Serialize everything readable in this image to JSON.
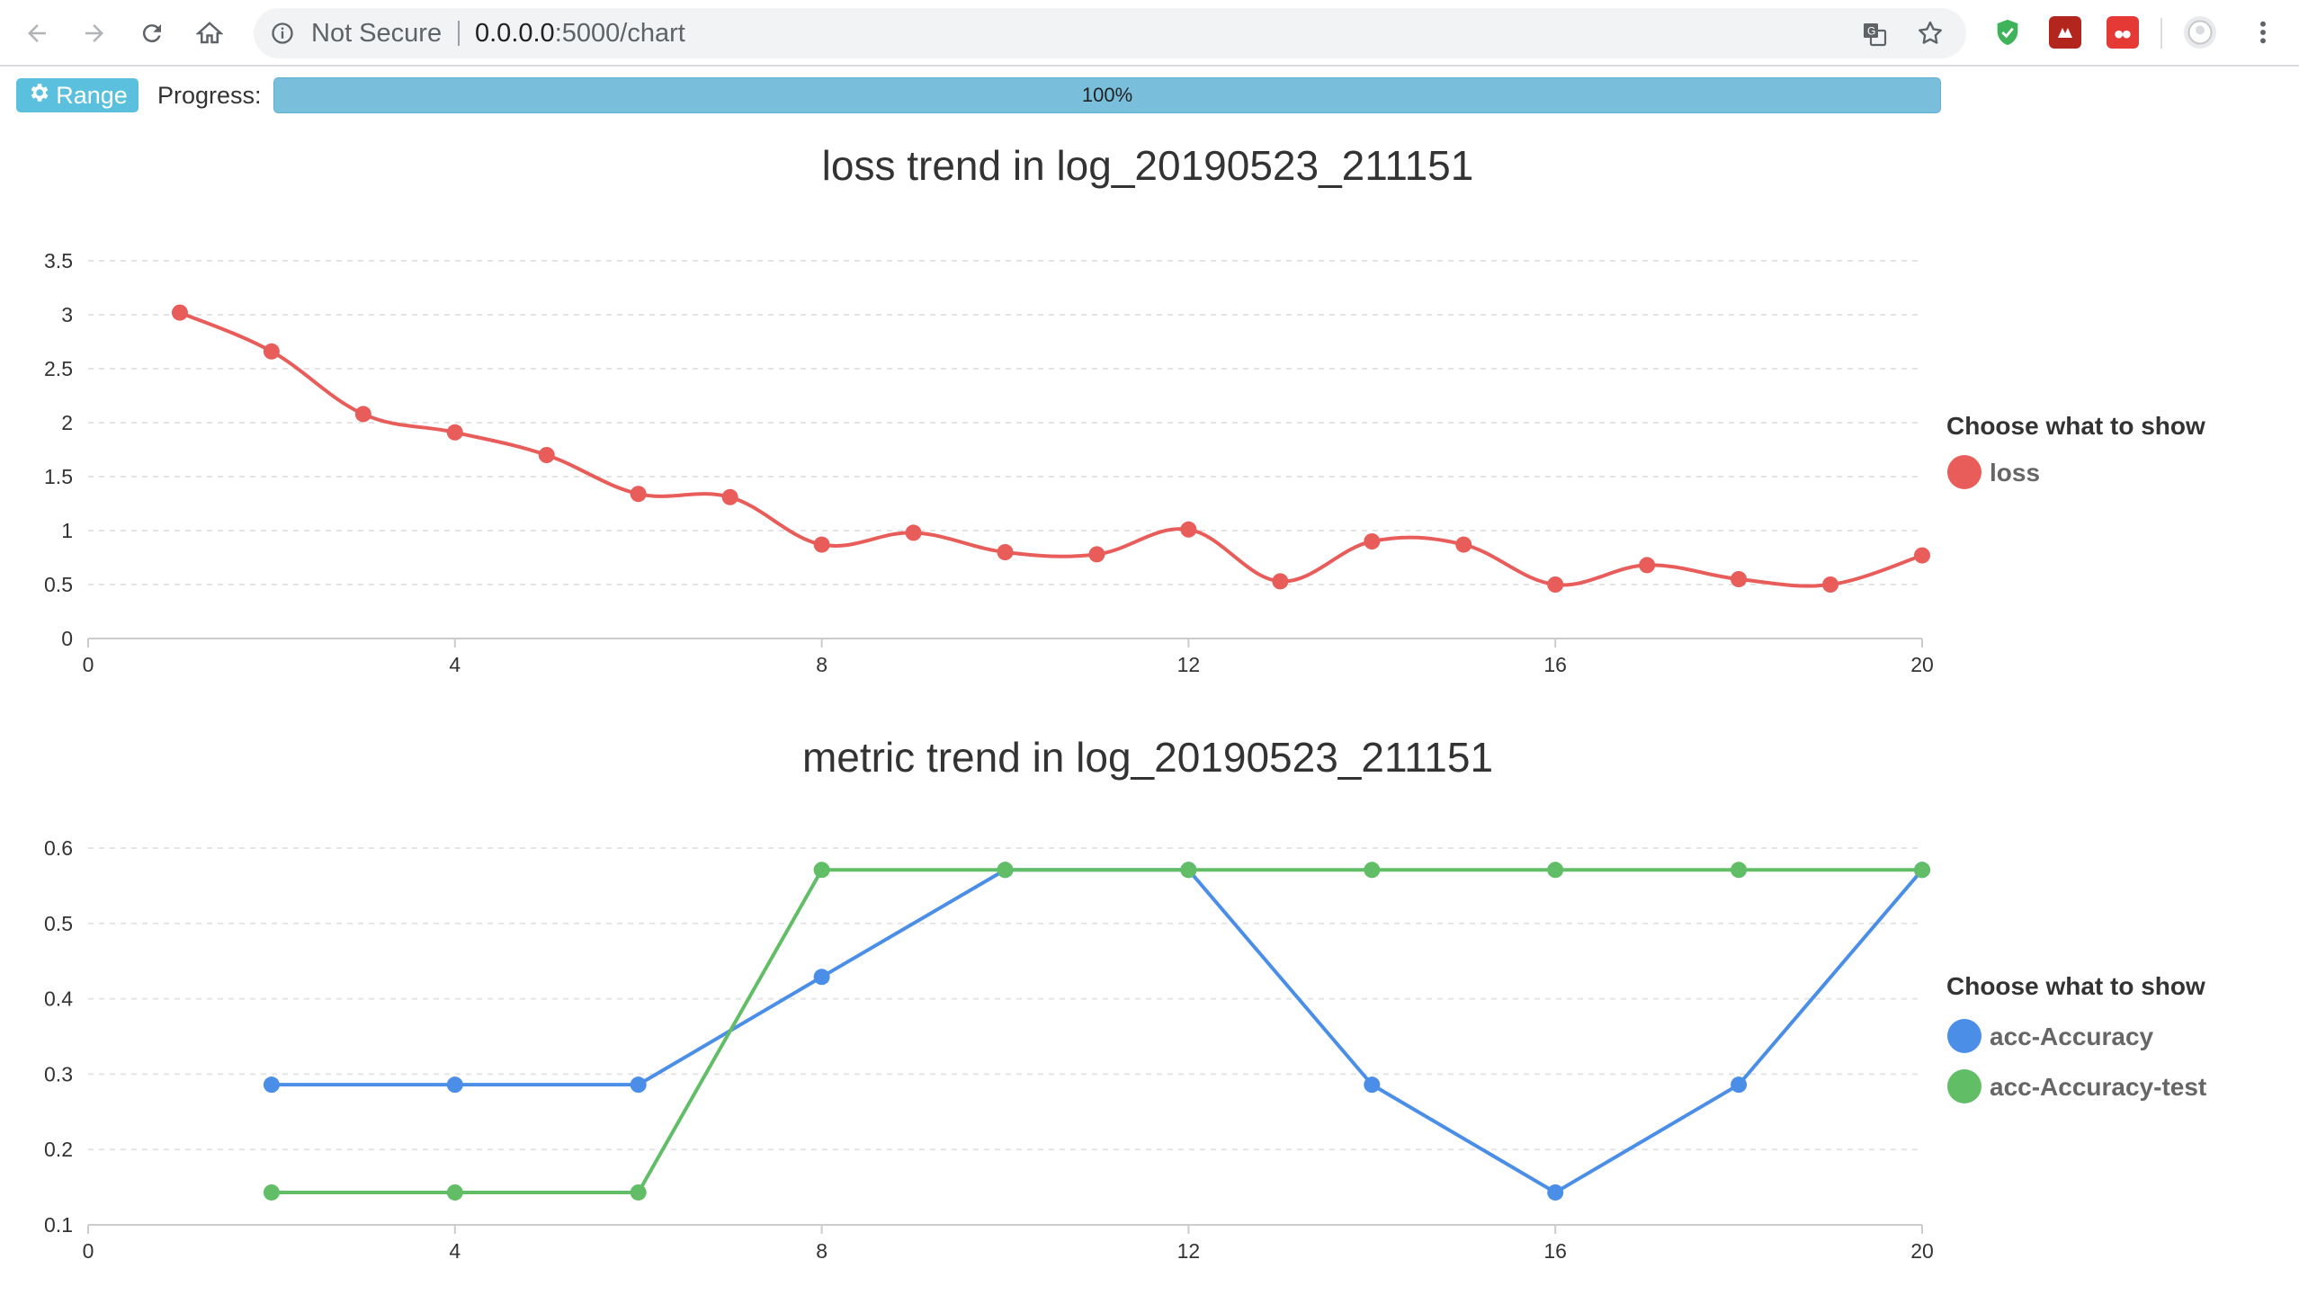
{
  "browser": {
    "security_label": "Not Secure",
    "url_host": "0.0.0.0",
    "url_path": ":5000/chart"
  },
  "toolbar": {
    "range_label": "Range",
    "progress_label": "Progress:",
    "progress_text": "100%",
    "progress_value": 100
  },
  "colors": {
    "loss": "#e85c5a",
    "acc": "#4a8ee8",
    "acc_test": "#61be67",
    "grid": "#e4e4e4",
    "axis": "#cccccc",
    "progress": "#79bfdc",
    "range_button": "#5bc0de"
  },
  "icons": [
    "back-arrow-icon",
    "forward-arrow-icon",
    "reload-icon",
    "home-icon",
    "info-icon",
    "translate-icon",
    "star-icon",
    "shield-extension-icon",
    "extension-icon",
    "extension-icon",
    "profile-icon",
    "menu-icon",
    "gear-icon"
  ],
  "chart_data": [
    {
      "type": "line",
      "title": "loss trend in log_20190523_211151",
      "x_ticks": [
        "0",
        "4",
        "8",
        "12",
        "16",
        "20"
      ],
      "y_ticks": [
        "0",
        "0.5",
        "1",
        "1.5",
        "2",
        "2.5",
        "3",
        "3.5"
      ],
      "xlim": [
        0,
        20
      ],
      "ylim": [
        0,
        3.5
      ],
      "grid": true,
      "legend_title": "Choose what to show",
      "legend_position": "right",
      "smooth": true,
      "series": [
        {
          "name": "loss",
          "x": [
            1,
            2,
            3,
            4,
            5,
            6,
            7,
            8,
            9,
            10,
            11,
            12,
            13,
            14,
            15,
            16,
            17,
            18,
            19,
            20
          ],
          "values": [
            3.02,
            2.66,
            2.08,
            1.91,
            1.7,
            1.34,
            1.31,
            0.87,
            0.98,
            0.8,
            0.78,
            1.01,
            0.53,
            0.9,
            0.87,
            0.5,
            0.68,
            0.55,
            0.5,
            0.77
          ]
        }
      ]
    },
    {
      "type": "line",
      "title": "metric trend in log_20190523_211151",
      "x_ticks": [
        "0",
        "4",
        "8",
        "12",
        "16",
        "20"
      ],
      "y_ticks": [
        "0.1",
        "0.2",
        "0.3",
        "0.4",
        "0.5",
        "0.6"
      ],
      "xlim": [
        0,
        20
      ],
      "ylim": [
        0.1,
        0.6
      ],
      "grid": true,
      "legend_title": "Choose what to show",
      "legend_position": "right",
      "smooth": false,
      "series": [
        {
          "name": "acc-Accuracy",
          "x": [
            2,
            4,
            6,
            8,
            10,
            12,
            14,
            16,
            18,
            20
          ],
          "values": [
            0.286,
            0.286,
            0.286,
            0.429,
            0.571,
            0.571,
            0.286,
            0.143,
            0.286,
            0.571
          ]
        },
        {
          "name": "acc-Accuracy-test",
          "x": [
            2,
            4,
            6,
            8,
            10,
            12,
            14,
            16,
            18,
            20
          ],
          "values": [
            0.143,
            0.143,
            0.143,
            0.571,
            0.571,
            0.571,
            0.571,
            0.571,
            0.571,
            0.571
          ]
        }
      ]
    }
  ]
}
